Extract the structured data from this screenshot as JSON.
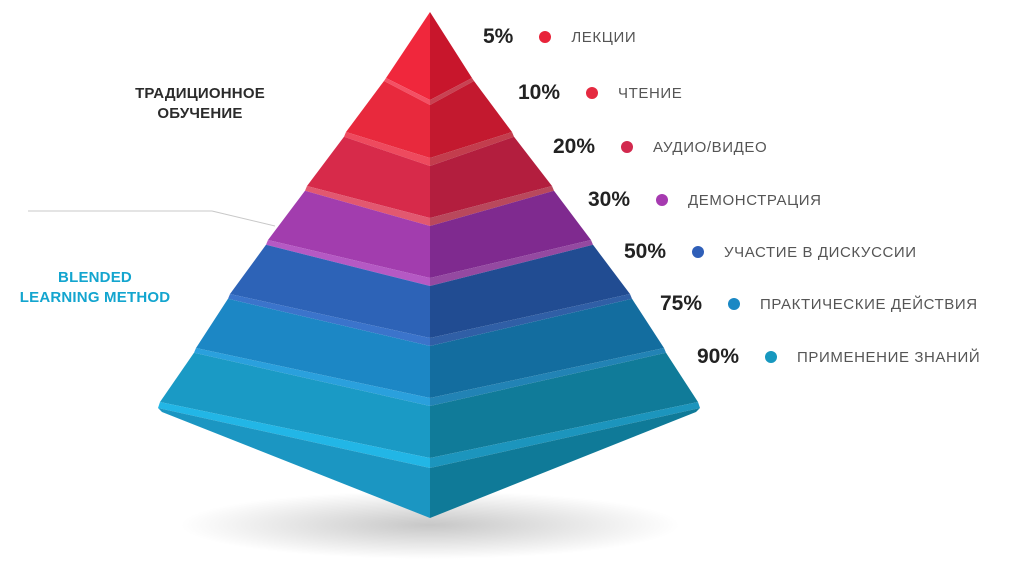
{
  "labels": {
    "traditional_line1": "ТРАДИЦИОННОЕ",
    "traditional_line2": "ОБУЧЕНИЕ",
    "blended_line1": "BLENDED",
    "blended_line2": "LEARNING METHOD"
  },
  "levels": [
    {
      "percent": "5%",
      "label": "ЛЕКЦИИ",
      "color": "#e8243a"
    },
    {
      "percent": "10%",
      "label": "ЧТЕНИЕ",
      "color": "#e52a40"
    },
    {
      "percent": "20%",
      "label": "АУДИО/ВИДЕО",
      "color": "#d2294e"
    },
    {
      "percent": "30%",
      "label": "ДЕМОНСТРАЦИЯ",
      "color": "#a63ab0"
    },
    {
      "percent": "50%",
      "label": "УЧАСТИЕ В ДИСКУССИИ",
      "color": "#2f5fb8"
    },
    {
      "percent": "75%",
      "label": "ПРАКТИЧЕСКИЕ ДЕЙСТВИЯ",
      "color": "#1a88c4"
    },
    {
      "percent": "90%",
      "label": "ПРИМЕНЕНИЕ ЗНАНИЙ",
      "color": "#1798bf"
    }
  ]
}
